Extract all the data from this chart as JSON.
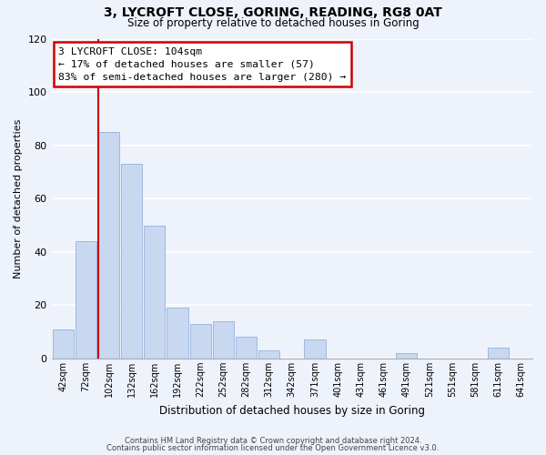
{
  "title": "3, LYCROFT CLOSE, GORING, READING, RG8 0AT",
  "subtitle": "Size of property relative to detached houses in Goring",
  "xlabel": "Distribution of detached houses by size in Goring",
  "ylabel": "Number of detached properties",
  "bar_color": "#c8d8f0",
  "bar_edge_color": "#a0b8e0",
  "background_color": "#eef2fb",
  "grid_color": "#ffffff",
  "annotation_box_color": "#ffffff",
  "annotation_border_color": "#cc0000",
  "vline_color": "#cc0000",
  "vline_x_index": 2,
  "annotation_text": "3 LYCROFT CLOSE: 104sqm\n← 17% of detached houses are smaller (57)\n83% of semi-detached houses are larger (280) →",
  "tick_labels": [
    "42sqm",
    "72sqm",
    "102sqm",
    "132sqm",
    "162sqm",
    "192sqm",
    "222sqm",
    "252sqm",
    "282sqm",
    "312sqm",
    "342sqm",
    "371sqm",
    "401sqm",
    "431sqm",
    "461sqm",
    "491sqm",
    "521sqm",
    "551sqm",
    "581sqm",
    "611sqm",
    "641sqm"
  ],
  "bar_heights": [
    11,
    44,
    85,
    73,
    50,
    19,
    13,
    14,
    8,
    3,
    0,
    7,
    0,
    0,
    0,
    2,
    0,
    0,
    0,
    4,
    0
  ],
  "ylim": [
    0,
    120
  ],
  "yticks": [
    0,
    20,
    40,
    60,
    80,
    100,
    120
  ],
  "footer_line1": "Contains HM Land Registry data © Crown copyright and database right 2024.",
  "footer_line2": "Contains public sector information licensed under the Open Government Licence v3.0."
}
